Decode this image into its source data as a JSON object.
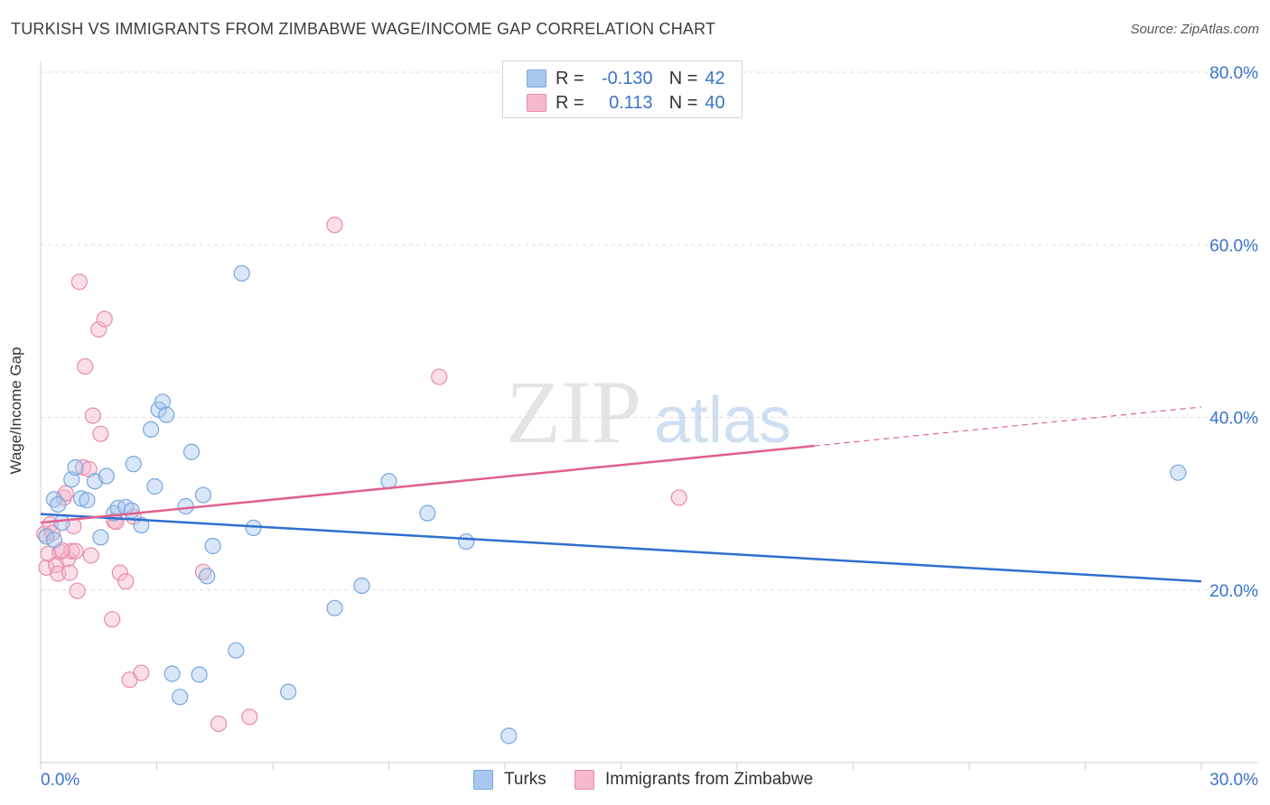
{
  "header": {
    "title": "TURKISH VS IMMIGRANTS FROM ZIMBABWE WAGE/INCOME GAP CORRELATION CHART",
    "source": "Source: ZipAtlas.com"
  },
  "watermark": {
    "zip": "ZIP",
    "atlas": "atlas"
  },
  "stats": {
    "row1": {
      "r_label": "R =",
      "r_value": "-0.130",
      "n_label": "N =",
      "n_value": "42"
    },
    "row2": {
      "r_label": "R =",
      "r_value": "0.113",
      "n_label": "N =",
      "n_value": "40"
    }
  },
  "legend": {
    "turks": "Turks",
    "zimbabwe": "Immigrants from Zimbabwe"
  },
  "colors": {
    "turks_fill": "#a9c8f0",
    "turks_stroke": "#7aa6dd",
    "turks_line": "#2f6fcf",
    "zim_fill": "#f6b9cc",
    "zim_stroke": "#e88aaa",
    "zim_line": "#e0608e",
    "axis_label": "#3b73c9",
    "grid": "#dcdcdc"
  },
  "chart_data": {
    "type": "scatter",
    "title": "TURKISH VS IMMIGRANTS FROM ZIMBABWE WAGE/INCOME GAP CORRELATION CHART",
    "xlabel": "",
    "ylabel": "Wage/Income Gap",
    "xlim": [
      0,
      30
    ],
    "ylim": [
      0,
      80
    ],
    "x_tick_labels": [
      "0.0%",
      "30.0%"
    ],
    "y_tick_labels": [
      "20.0%",
      "40.0%",
      "60.0%",
      "80.0%"
    ],
    "y_ticks": [
      20,
      40,
      60,
      80
    ],
    "grid": true,
    "legend_position": "bottom",
    "series": [
      {
        "name": "Turks",
        "r": -0.13,
        "n": 42,
        "trend": {
          "x": [
            0,
            30
          ],
          "y": [
            28.8,
            21.0
          ]
        },
        "points": [
          [
            0.15,
            26.2
          ],
          [
            0.35,
            25.8
          ],
          [
            0.35,
            30.5
          ],
          [
            0.45,
            29.9
          ],
          [
            0.55,
            27.8
          ],
          [
            0.8,
            32.8
          ],
          [
            0.9,
            34.2
          ],
          [
            1.05,
            30.6
          ],
          [
            1.2,
            30.4
          ],
          [
            1.4,
            32.6
          ],
          [
            1.55,
            26.1
          ],
          [
            1.7,
            33.2
          ],
          [
            1.9,
            28.9
          ],
          [
            2.0,
            29.5
          ],
          [
            2.2,
            29.6
          ],
          [
            2.35,
            29.2
          ],
          [
            2.4,
            34.6
          ],
          [
            2.6,
            27.5
          ],
          [
            2.85,
            38.6
          ],
          [
            2.95,
            32.0
          ],
          [
            3.05,
            40.9
          ],
          [
            3.15,
            41.8
          ],
          [
            3.25,
            40.3
          ],
          [
            3.4,
            10.3
          ],
          [
            3.6,
            7.6
          ],
          [
            3.75,
            29.7
          ],
          [
            3.9,
            36.0
          ],
          [
            4.1,
            10.2
          ],
          [
            4.2,
            31.0
          ],
          [
            4.3,
            21.6
          ],
          [
            4.45,
            25.1
          ],
          [
            5.05,
            13.0
          ],
          [
            5.2,
            56.7
          ],
          [
            5.5,
            27.2
          ],
          [
            6.4,
            8.2
          ],
          [
            7.6,
            17.9
          ],
          [
            8.3,
            20.5
          ],
          [
            9.0,
            32.6
          ],
          [
            10.0,
            28.9
          ],
          [
            11.0,
            25.6
          ],
          [
            12.1,
            3.1
          ],
          [
            29.4,
            33.6
          ]
        ]
      },
      {
        "name": "Immigrants from Zimbabwe",
        "r": 0.113,
        "n": 40,
        "trend": {
          "x": [
            0,
            20.0
          ],
          "y": [
            27.8,
            36.7
          ]
        },
        "trend_dashed": {
          "x": [
            20.0,
            30
          ],
          "y": [
            36.7,
            41.2
          ]
        },
        "points": [
          [
            0.1,
            26.5
          ],
          [
            0.15,
            22.6
          ],
          [
            0.2,
            24.2
          ],
          [
            0.25,
            27.6
          ],
          [
            0.3,
            26.6
          ],
          [
            0.4,
            22.9
          ],
          [
            0.45,
            21.9
          ],
          [
            0.5,
            24.4
          ],
          [
            0.6,
            30.7
          ],
          [
            0.65,
            31.2
          ],
          [
            0.7,
            23.6
          ],
          [
            0.75,
            22.0
          ],
          [
            0.8,
            24.5
          ],
          [
            0.85,
            27.4
          ],
          [
            0.9,
            24.5
          ],
          [
            0.95,
            19.9
          ],
          [
            1.0,
            55.7
          ],
          [
            1.1,
            34.2
          ],
          [
            1.15,
            45.9
          ],
          [
            1.25,
            34.0
          ],
          [
            1.3,
            24.0
          ],
          [
            1.35,
            40.2
          ],
          [
            1.5,
            50.2
          ],
          [
            1.55,
            38.1
          ],
          [
            1.65,
            51.4
          ],
          [
            1.85,
            16.6
          ],
          [
            1.9,
            28.0
          ],
          [
            1.95,
            27.9
          ],
          [
            2.05,
            22.0
          ],
          [
            2.2,
            21.0
          ],
          [
            2.3,
            9.6
          ],
          [
            2.4,
            28.5
          ],
          [
            2.6,
            10.4
          ],
          [
            4.2,
            22.1
          ],
          [
            4.6,
            4.5
          ],
          [
            5.4,
            5.3
          ],
          [
            7.6,
            62.3
          ],
          [
            10.3,
            44.7
          ],
          [
            16.5,
            30.7
          ],
          [
            0.55,
            24.6
          ]
        ]
      }
    ]
  }
}
